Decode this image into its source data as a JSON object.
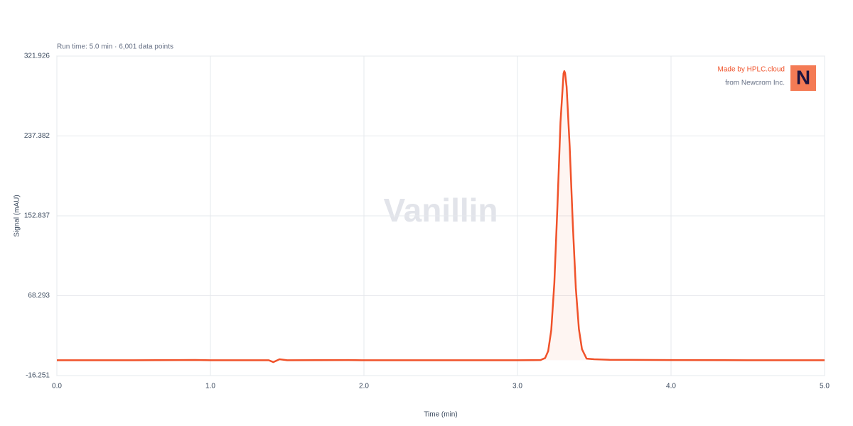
{
  "chart_data": {
    "type": "line",
    "title": "Vanillin",
    "subtitle": "Run time: 5.0 min · 6,001 data points",
    "x_label": "Time (min)",
    "y_label": "Signal (mAU)",
    "branding": {
      "line1": "Made by HPLC.cloud",
      "line2": "from Newcrom Inc.",
      "logo": "N"
    },
    "x": [
      0,
      0.5,
      0.9,
      1.0,
      1.38,
      1.41,
      1.45,
      1.5,
      1.9,
      2.0,
      2.5,
      3.0,
      3.1,
      3.15,
      3.18,
      3.2,
      3.22,
      3.24,
      3.26,
      3.28,
      3.3,
      3.305,
      3.31,
      3.32,
      3.34,
      3.36,
      3.38,
      3.4,
      3.42,
      3.45,
      3.5,
      3.6,
      4.0,
      4.5,
      5.0
    ],
    "series": [
      {
        "name": "Signal",
        "color": "#f0522a",
        "values": [
          0,
          0,
          0.3,
          0,
          0,
          -2,
          1,
          0,
          0.2,
          0,
          0,
          0,
          0.1,
          0.2,
          2.3,
          9.8,
          32,
          81.7,
          162.5,
          251.8,
          303.6,
          306,
          304.1,
          289.4,
          226.2,
          145,
          76.3,
          33,
          11.7,
          1.7,
          1,
          0.5,
          0.2,
          0,
          0
        ]
      }
    ],
    "xlim": [
      0,
      5
    ],
    "xticks": [
      {
        "value": 0,
        "label": "0.0"
      },
      {
        "value": 1,
        "label": "1.0"
      },
      {
        "value": 2,
        "label": "2.0"
      },
      {
        "value": 3,
        "label": "3.0"
      },
      {
        "value": 4,
        "label": "4.0"
      },
      {
        "value": 5,
        "label": "5.0"
      }
    ],
    "ylim": [
      -16.251,
      321.926
    ],
    "yticks": [
      -16.251,
      68.293,
      152.837,
      237.382,
      321.926
    ],
    "grid": true
  }
}
